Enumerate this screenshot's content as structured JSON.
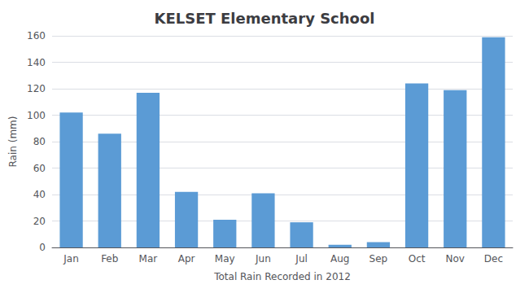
{
  "chart_data": {
    "type": "bar",
    "title": "KELSET Elementary School",
    "xlabel": "Total Rain Recorded in 2012",
    "ylabel": "Rain (mm)",
    "categories": [
      "Jan",
      "Feb",
      "Mar",
      "Apr",
      "May",
      "Jun",
      "Jul",
      "Aug",
      "Sep",
      "Oct",
      "Nov",
      "Dec"
    ],
    "values": [
      102,
      86,
      117,
      42,
      21,
      41,
      19,
      2,
      4,
      124,
      119,
      159
    ],
    "color": "#5b9bd5",
    "ylim": [
      0,
      160
    ],
    "yticks": [
      0,
      20,
      40,
      60,
      80,
      100,
      120,
      140,
      160
    ],
    "grid": true
  }
}
